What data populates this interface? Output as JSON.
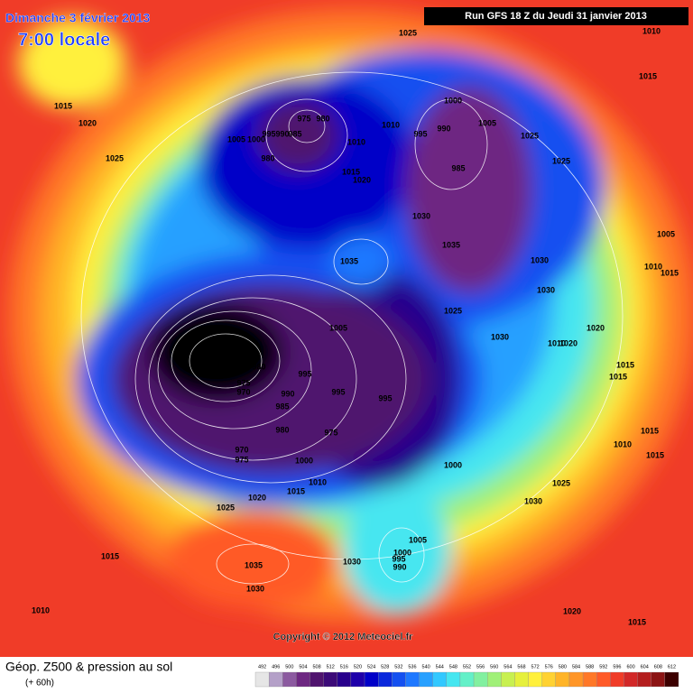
{
  "header": {
    "title": "Dimanche 3 février 2013",
    "subtitle": "7:00 locale",
    "run": "Run GFS 18 Z du Jeudi 31 janvier 2013"
  },
  "map": {
    "copyright": "Copyright © 2012 Meteociel.fr",
    "isobar_labels": [
      1025,
      1010,
      1015,
      1015,
      1020,
      1025,
      975,
      980,
      1005,
      1000,
      995,
      990,
      985,
      980,
      1010,
      1010,
      995,
      990,
      1000,
      1005,
      1025,
      1025,
      985,
      1015,
      1020,
      1030,
      1035,
      1035,
      1005,
      1030,
      1010,
      1015,
      1030,
      1025,
      1005,
      1030,
      1010,
      1020,
      1020,
      1015,
      1015,
      980,
      975,
      970,
      995,
      990,
      985,
      995,
      995,
      980,
      975,
      1015,
      1010,
      1015,
      970,
      975,
      1000,
      1000,
      1010,
      1015,
      1025,
      1020,
      1030,
      1025,
      1005,
      1000,
      995,
      990,
      1015,
      1030,
      1035,
      1030,
      1010,
      1020,
      1015
    ]
  },
  "footer": {
    "title": "Géop. Z500 & pression au sol",
    "lead_time": "(+ 60h)",
    "legend": [
      492,
      496,
      500,
      504,
      508,
      512,
      516,
      520,
      524,
      528,
      532,
      536,
      540,
      544,
      548,
      552,
      556,
      560,
      564,
      568,
      572,
      576,
      580,
      584,
      588,
      592,
      596,
      600,
      604,
      608,
      612
    ]
  }
}
